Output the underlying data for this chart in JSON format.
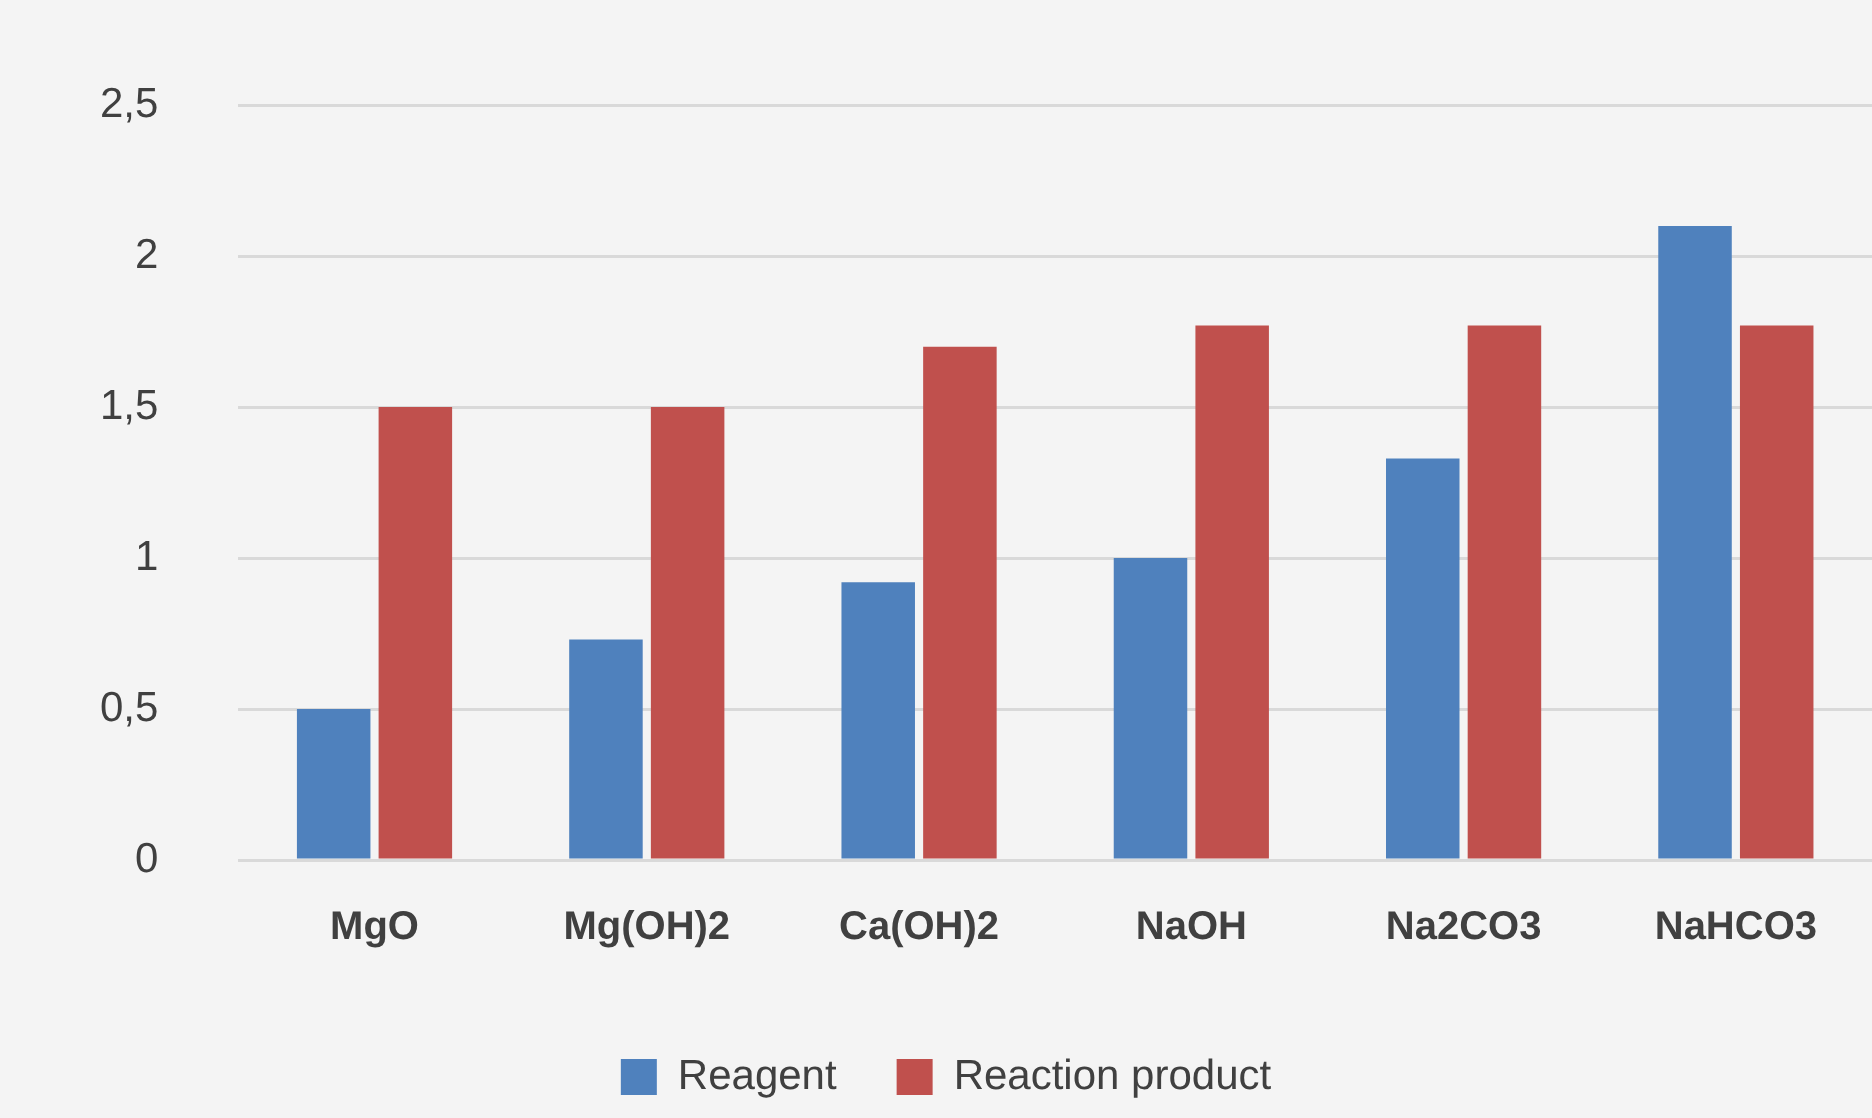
{
  "chart_data": {
    "type": "bar",
    "categories": [
      "MgO",
      "Mg(OH)2",
      "Ca(OH)2",
      "NaOH",
      "Na2CO3",
      "NaHCO3"
    ],
    "series": [
      {
        "name": "Reagent",
        "color": "#4f81bd",
        "values": [
          0.5,
          0.73,
          0.92,
          1.0,
          1.33,
          2.1
        ]
      },
      {
        "name": "Reaction product",
        "color": "#c0504d",
        "values": [
          1.5,
          1.5,
          1.7,
          1.77,
          1.77,
          1.77
        ]
      }
    ],
    "ylim": [
      0,
      2.5
    ],
    "yticks": [
      {
        "value": 0,
        "label": "0"
      },
      {
        "value": 0.5,
        "label": "0,5"
      },
      {
        "value": 1,
        "label": "1"
      },
      {
        "value": 1.5,
        "label": "1,5"
      },
      {
        "value": 2,
        "label": "2"
      },
      {
        "value": 2.5,
        "label": "2,5"
      }
    ],
    "grid": "y",
    "legend": "bottom"
  }
}
